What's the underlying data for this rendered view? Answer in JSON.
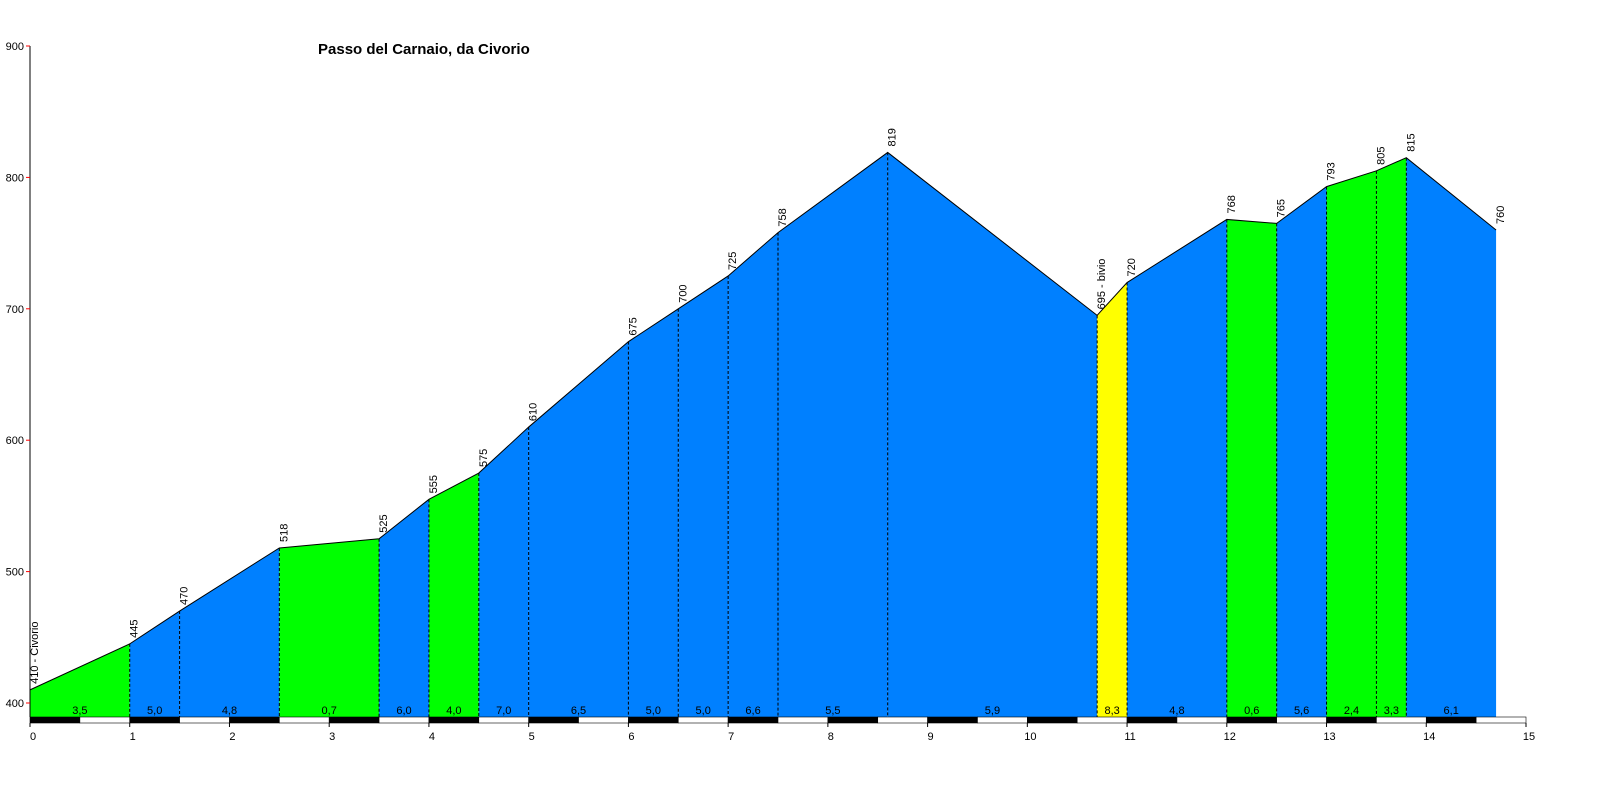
{
  "chart_data": {
    "type": "area",
    "title": "Passo del Carnaio, da Civorio",
    "xlabel": "",
    "ylabel": "",
    "xlim": [
      0,
      15
    ],
    "ylim": [
      400,
      900
    ],
    "x_ticks": [
      "0",
      "1",
      "2",
      "3",
      "4",
      "5",
      "6",
      "7",
      "8",
      "9",
      "10",
      "11",
      "12",
      "13",
      "14",
      "15"
    ],
    "y_ticks": [
      "400",
      "500",
      "600",
      "700",
      "800",
      "900"
    ],
    "points": [
      {
        "x": 0,
        "y": 410,
        "label": "410 - Civorio"
      },
      {
        "x": 1,
        "y": 445,
        "label": "445"
      },
      {
        "x": 1.5,
        "y": 470,
        "label": "470"
      },
      {
        "x": 2.5,
        "y": 518,
        "label": "518"
      },
      {
        "x": 3.5,
        "y": 525,
        "label": "525"
      },
      {
        "x": 4,
        "y": 555,
        "label": "555"
      },
      {
        "x": 4.5,
        "y": 575,
        "label": "575"
      },
      {
        "x": 5,
        "y": 610,
        "label": "610"
      },
      {
        "x": 6,
        "y": 675,
        "label": "675"
      },
      {
        "x": 6.5,
        "y": 700,
        "label": "700"
      },
      {
        "x": 7,
        "y": 725,
        "label": "725"
      },
      {
        "x": 7.5,
        "y": 758,
        "label": "758"
      },
      {
        "x": 8.6,
        "y": 819,
        "label": "819"
      },
      {
        "x": 10.7,
        "y": 695,
        "label": "695 - bivio"
      },
      {
        "x": 11,
        "y": 720,
        "label": "720"
      },
      {
        "x": 12,
        "y": 768,
        "label": "768"
      },
      {
        "x": 12.5,
        "y": 765,
        "label": "765"
      },
      {
        "x": 13,
        "y": 793,
        "label": "793"
      },
      {
        "x": 13.5,
        "y": 805,
        "label": "805"
      },
      {
        "x": 13.8,
        "y": 815,
        "label": "815"
      },
      {
        "x": 14.7,
        "y": 760,
        "label": "760"
      }
    ],
    "segments": [
      {
        "grade": "3,5",
        "color": "#00ff00"
      },
      {
        "grade": "5,0",
        "color": "#0080ff"
      },
      {
        "grade": "4,8",
        "color": "#0080ff"
      },
      {
        "grade": "0,7",
        "color": "#00ff00"
      },
      {
        "grade": "6,0",
        "color": "#0080ff"
      },
      {
        "grade": "4,0",
        "color": "#00ff00"
      },
      {
        "grade": "7,0",
        "color": "#0080ff"
      },
      {
        "grade": "6,5",
        "color": "#0080ff"
      },
      {
        "grade": "5,0",
        "color": "#0080ff"
      },
      {
        "grade": "5,0",
        "color": "#0080ff"
      },
      {
        "grade": "6,6",
        "color": "#0080ff"
      },
      {
        "grade": "5,5",
        "color": "#0080ff"
      },
      {
        "grade": "5,9",
        "color": "#0080ff"
      },
      {
        "grade": "8,3",
        "color": "#ffff00"
      },
      {
        "grade": "4,8",
        "color": "#0080ff"
      },
      {
        "grade": "0,6",
        "color": "#00ff00"
      },
      {
        "grade": "5,6",
        "color": "#0080ff"
      },
      {
        "grade": "2,4",
        "color": "#00ff00"
      },
      {
        "grade": "3,3",
        "color": "#00ff00"
      },
      {
        "grade": "6,1",
        "color": "#0080ff"
      }
    ],
    "colors": {
      "outline": "#000000",
      "axis_tick": "#ff0000",
      "bar_dark": "#000000",
      "bar_light": "#ffffff"
    }
  }
}
